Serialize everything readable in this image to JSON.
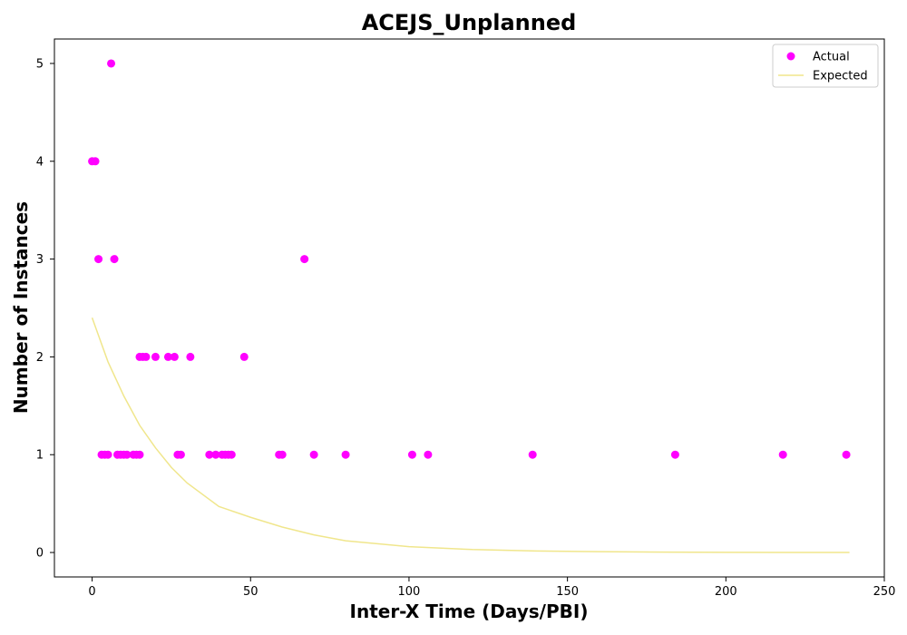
{
  "chart_data": {
    "type": "scatter",
    "title": "ACEJS_Unplanned",
    "xlabel": "Inter-X Time (Days/PBI)",
    "ylabel": "Number of Instances",
    "xlim": [
      -11.9,
      250
    ],
    "ylim": [
      -0.25,
      5.25
    ],
    "xticks": [
      0,
      50,
      100,
      150,
      200,
      250
    ],
    "yticks": [
      0,
      1,
      2,
      3,
      4,
      5
    ],
    "grid": false,
    "legend_position": "top-right",
    "series": [
      {
        "name": "Actual",
        "kind": "scatter",
        "color": "#ff00ff",
        "x": [
          0,
          1,
          2,
          3,
          4,
          5,
          6,
          7,
          8,
          9,
          10,
          11,
          13,
          14,
          15,
          15,
          16,
          17,
          20,
          24,
          26,
          27,
          28,
          31,
          37,
          39,
          41,
          42,
          43,
          44,
          48,
          59,
          60,
          67,
          70,
          80,
          101,
          106,
          139,
          184,
          218,
          238
        ],
        "y": [
          4,
          4,
          3,
          1,
          1,
          1,
          5,
          3,
          1,
          1,
          1,
          1,
          1,
          1,
          1,
          2,
          2,
          2,
          2,
          2,
          2,
          1,
          1,
          2,
          1,
          1,
          1,
          1,
          1,
          1,
          2,
          1,
          1,
          3,
          1,
          1,
          1,
          1,
          1,
          1,
          1,
          1
        ]
      },
      {
        "name": "Expected",
        "kind": "line",
        "color": "#f0e68c",
        "x": [
          0,
          5,
          10,
          15,
          20,
          25,
          30,
          40,
          50,
          60,
          70,
          80,
          90,
          100,
          120,
          140,
          160,
          180,
          200,
          220,
          239
        ],
        "y": [
          2.4,
          1.95,
          1.6,
          1.3,
          1.07,
          0.87,
          0.71,
          0.47,
          0.36,
          0.26,
          0.18,
          0.12,
          0.09,
          0.06,
          0.03,
          0.015,
          0.008,
          0.004,
          0.002,
          0.001,
          0.0005
        ]
      }
    ]
  }
}
